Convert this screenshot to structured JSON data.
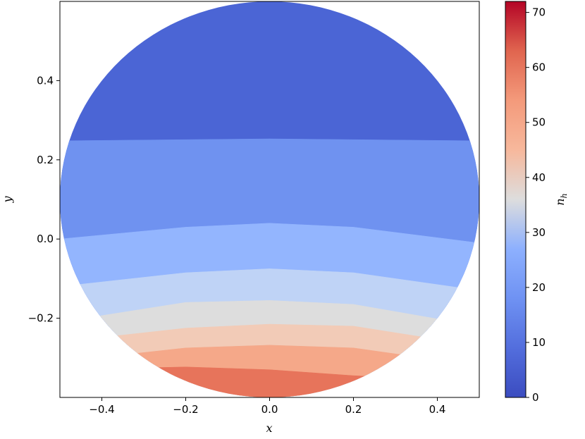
{
  "chart_data": {
    "type": "filled-contour",
    "xlabel": "x",
    "ylabel": "y",
    "colorbar_label": "n_h",
    "colorbar_label_main": "n",
    "colorbar_label_sub": "h",
    "colormap": "coolwarm",
    "xlim": [
      -0.5,
      0.5
    ],
    "ylim": [
      -0.4,
      0.6
    ],
    "x_ticks": [
      -0.4,
      -0.2,
      0.0,
      0.2,
      0.4
    ],
    "x_tick_labels": [
      "−0.4",
      "−0.2",
      "0.0",
      "0.2",
      "0.4"
    ],
    "y_ticks": [
      -0.2,
      0.0,
      0.2,
      0.4
    ],
    "y_tick_labels": [
      "−0.2",
      "0.0",
      "0.2",
      "0.4"
    ],
    "colorbar_range": [
      0,
      72
    ],
    "colorbar_ticks": [
      0,
      10,
      20,
      30,
      40,
      50,
      60,
      70
    ],
    "colorbar_tick_labels": [
      "0",
      "10",
      "20",
      "30",
      "40",
      "50",
      "60",
      "70"
    ],
    "domain": {
      "shape": "circle",
      "center": [
        0.0,
        0.1
      ],
      "radius": 0.5
    },
    "levels": [
      {
        "range": [
          0,
          8
        ],
        "color": "#4b65d5",
        "boundary": [
          [
            -0.5,
            0.248
          ],
          [
            0.0,
            0.253
          ],
          [
            0.5,
            0.248
          ]
        ]
      },
      {
        "range": [
          8,
          16
        ],
        "color": "#6f92f0",
        "boundary": [
          [
            -0.5,
            0.0
          ],
          [
            -0.2,
            0.03
          ],
          [
            0.0,
            0.04
          ],
          [
            0.2,
            0.03
          ],
          [
            0.5,
            -0.01
          ]
        ]
      },
      {
        "range": [
          16,
          24
        ],
        "color": "#93b5fe",
        "boundary": [
          [
            -0.5,
            -0.12
          ],
          [
            -0.2,
            -0.085
          ],
          [
            0.0,
            -0.075
          ],
          [
            0.2,
            -0.085
          ],
          [
            0.5,
            -0.13
          ]
        ]
      },
      {
        "range": [
          24,
          32
        ],
        "color": "#bfd3f6",
        "boundary": [
          [
            -0.5,
            -0.21
          ],
          [
            -0.2,
            -0.16
          ],
          [
            0.0,
            -0.155
          ],
          [
            0.2,
            -0.165
          ],
          [
            0.5,
            -0.22
          ]
        ]
      },
      {
        "range": [
          32,
          40
        ],
        "color": "#dddddd",
        "boundary": [
          [
            -0.5,
            -0.26
          ],
          [
            -0.2,
            -0.225
          ],
          [
            0.0,
            -0.215
          ],
          [
            0.2,
            -0.22
          ],
          [
            0.5,
            -0.27
          ]
        ]
      },
      {
        "range": [
          40,
          48
        ],
        "color": "#f2cbb7",
        "boundary": [
          [
            -0.5,
            -0.31
          ],
          [
            -0.2,
            -0.275
          ],
          [
            0.0,
            -0.268
          ],
          [
            0.2,
            -0.275
          ],
          [
            0.5,
            -0.32
          ]
        ]
      },
      {
        "range": [
          48,
          56
        ],
        "color": "#f5a889",
        "boundary": [
          [
            -0.5,
            -0.33
          ],
          [
            -0.2,
            -0.323
          ],
          [
            0.0,
            -0.33
          ],
          [
            0.2,
            -0.345
          ],
          [
            0.5,
            -0.36
          ]
        ]
      },
      {
        "range": [
          56,
          64
        ],
        "color": "#e7745b"
      }
    ]
  }
}
